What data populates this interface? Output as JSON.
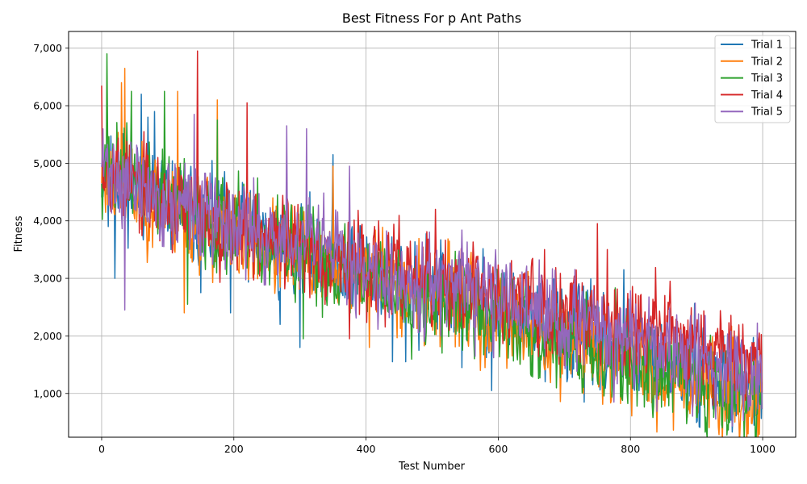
{
  "chart_data": {
    "type": "line",
    "title": "Best Fitness For p Ant Paths",
    "xlabel": "Test Number",
    "ylabel": "Fitness",
    "xlim": [
      -50,
      1050
    ],
    "ylim": [
      240,
      7290
    ],
    "x_ticks": [
      0,
      200,
      400,
      600,
      800,
      1000
    ],
    "y_ticks": [
      1000,
      2000,
      3000,
      4000,
      5000,
      6000,
      7000
    ],
    "y_tick_labels": [
      "1,000",
      "2,000",
      "3,000",
      "4,000",
      "5,000",
      "6,000",
      "7,000"
    ],
    "grid": true,
    "legend_position": "top-right",
    "x_start": 0,
    "x_end": 999,
    "series": [
      {
        "name": "Trial 1",
        "color": "#1f77b4",
        "trend": [
          [
            0,
            4900
          ],
          [
            50,
            4600
          ],
          [
            100,
            4300
          ],
          [
            200,
            3800
          ],
          [
            300,
            3450
          ],
          [
            400,
            3150
          ],
          [
            500,
            2800
          ],
          [
            600,
            2450
          ],
          [
            700,
            2100
          ],
          [
            800,
            1700
          ],
          [
            900,
            1350
          ],
          [
            1000,
            1100
          ]
        ],
        "noise": 820,
        "spikes": [
          [
            10,
            3900
          ],
          [
            20,
            3000
          ],
          [
            60,
            6200
          ],
          [
            70,
            5800
          ],
          [
            80,
            5900
          ],
          [
            150,
            2750
          ],
          [
            195,
            2400
          ],
          [
            270,
            2200
          ],
          [
            300,
            1800
          ],
          [
            350,
            5150
          ],
          [
            440,
            1550
          ],
          [
            460,
            1550
          ],
          [
            480,
            1750
          ],
          [
            545,
            1450
          ],
          [
            590,
            1050
          ],
          [
            730,
            850
          ],
          [
            790,
            3150
          ],
          [
            955,
            650
          ]
        ],
        "seed": 11
      },
      {
        "name": "Trial 2",
        "color": "#ff7f0e",
        "trend": [
          [
            0,
            4900
          ],
          [
            50,
            4500
          ],
          [
            100,
            4250
          ],
          [
            200,
            3700
          ],
          [
            300,
            3400
          ],
          [
            400,
            3100
          ],
          [
            500,
            2700
          ],
          [
            600,
            2300
          ],
          [
            700,
            1900
          ],
          [
            800,
            1500
          ],
          [
            900,
            1150
          ],
          [
            1000,
            950
          ]
        ],
        "noise": 820,
        "spikes": [
          [
            35,
            6650
          ],
          [
            30,
            6400
          ],
          [
            115,
            6250
          ],
          [
            125,
            2400
          ],
          [
            175,
            1950
          ],
          [
            175,
            6100
          ],
          [
            350,
            4950
          ],
          [
            405,
            1800
          ],
          [
            580,
            1450
          ],
          [
            980,
            600
          ]
        ],
        "seed": 23
      },
      {
        "name": "Trial 3",
        "color": "#2ca02c",
        "trend": [
          [
            0,
            5000
          ],
          [
            50,
            4750
          ],
          [
            100,
            4400
          ],
          [
            200,
            3800
          ],
          [
            300,
            3400
          ],
          [
            400,
            3050
          ],
          [
            500,
            2700
          ],
          [
            600,
            2300
          ],
          [
            700,
            1900
          ],
          [
            800,
            1550
          ],
          [
            900,
            1250
          ],
          [
            1000,
            1000
          ]
        ],
        "noise": 820,
        "spikes": [
          [
            8,
            6900
          ],
          [
            45,
            6250
          ],
          [
            95,
            6250
          ],
          [
            130,
            2550
          ],
          [
            175,
            5750
          ],
          [
            305,
            1950
          ],
          [
            515,
            1700
          ],
          [
            810,
            780
          ]
        ],
        "seed": 37
      },
      {
        "name": "Trial 4",
        "color": "#d62728",
        "trend": [
          [
            0,
            5100
          ],
          [
            50,
            4600
          ],
          [
            100,
            4300
          ],
          [
            200,
            3900
          ],
          [
            300,
            3550
          ],
          [
            400,
            3200
          ],
          [
            500,
            2950
          ],
          [
            600,
            2700
          ],
          [
            700,
            2450
          ],
          [
            800,
            2200
          ],
          [
            900,
            1950
          ],
          [
            1000,
            1650
          ]
        ],
        "noise": 780,
        "spikes": [
          [
            0,
            6350
          ],
          [
            145,
            6950
          ],
          [
            220,
            6050
          ],
          [
            375,
            1950
          ],
          [
            505,
            4200
          ],
          [
            670,
            3500
          ],
          [
            750,
            3950
          ],
          [
            765,
            3500
          ],
          [
            860,
            2950
          ],
          [
            995,
            2050
          ]
        ],
        "seed": 53
      },
      {
        "name": "Trial 5",
        "color": "#9467bd",
        "trend": [
          [
            0,
            5000
          ],
          [
            50,
            4600
          ],
          [
            100,
            4300
          ],
          [
            200,
            3900
          ],
          [
            300,
            3550
          ],
          [
            400,
            3250
          ],
          [
            500,
            2900
          ],
          [
            600,
            2600
          ],
          [
            700,
            2250
          ],
          [
            800,
            1900
          ],
          [
            900,
            1550
          ],
          [
            1000,
            1300
          ]
        ],
        "noise": 800,
        "spikes": [
          [
            35,
            2450
          ],
          [
            140,
            5850
          ],
          [
            280,
            5650
          ],
          [
            310,
            5600
          ],
          [
            375,
            4950
          ],
          [
            775,
            850
          ]
        ],
        "seed": 71
      }
    ]
  }
}
